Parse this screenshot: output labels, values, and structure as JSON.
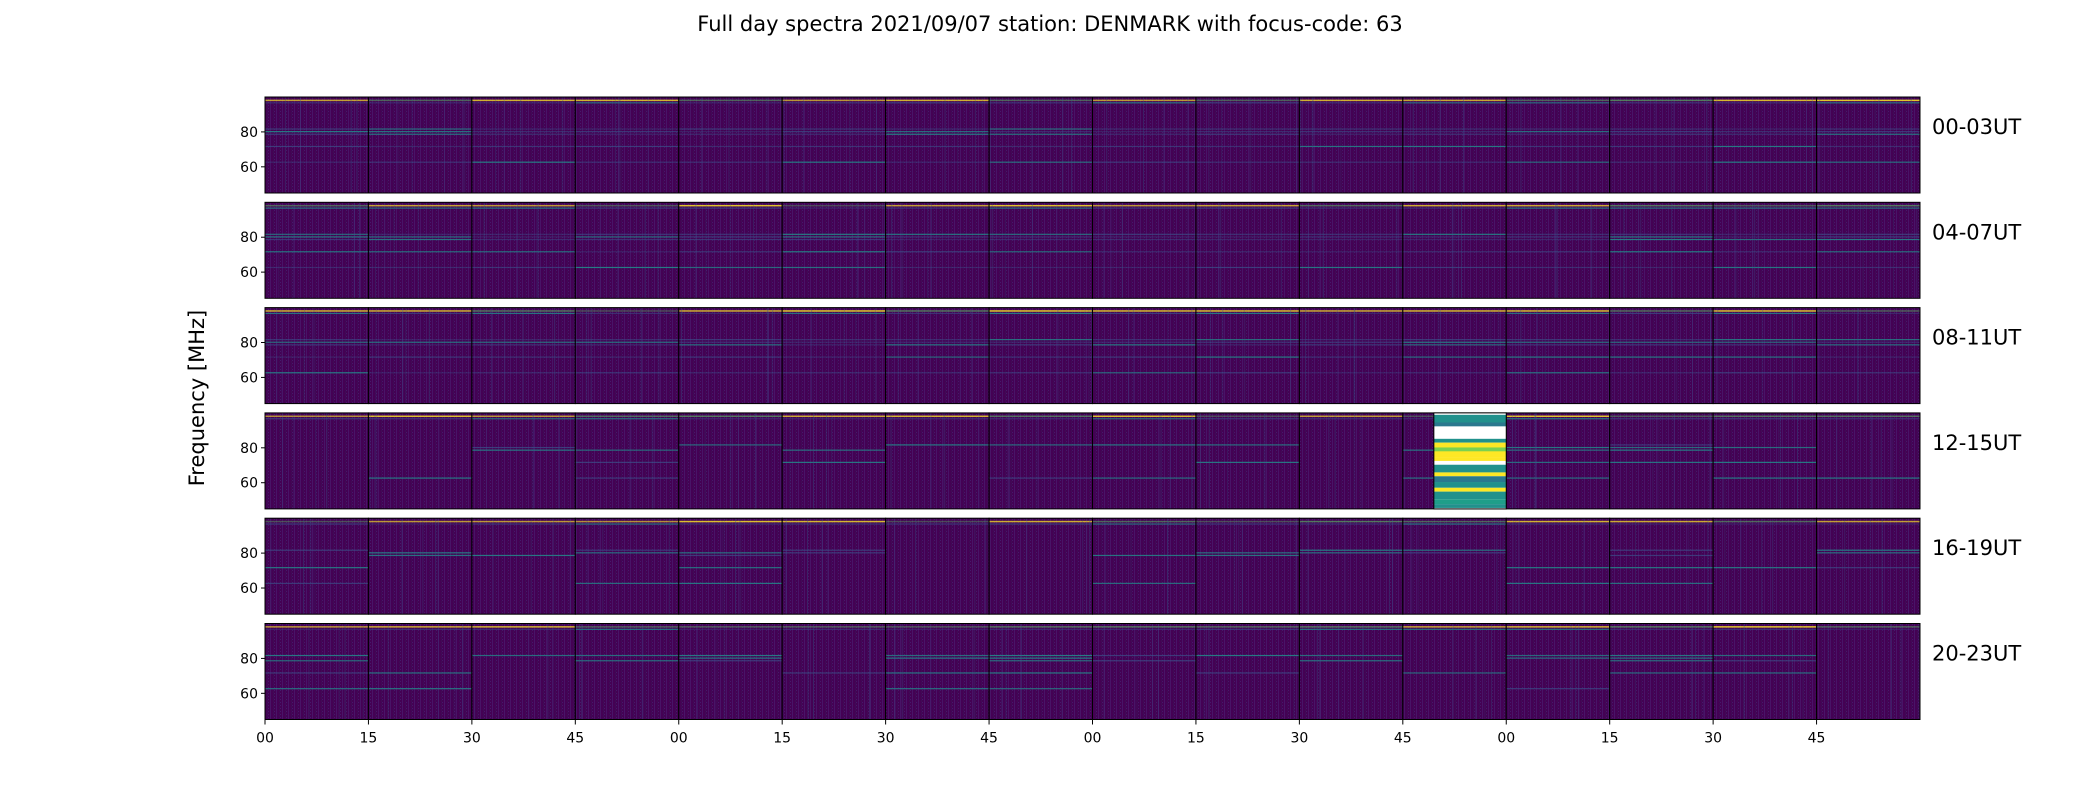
{
  "chart_data": {
    "type": "heatmap",
    "title": "Full day spectra 2021/09/07 station: DENMARK with focus-code: 63",
    "ylabel": "Frequency [MHz]",
    "xlabel": "",
    "y_ticks": [
      "80",
      "60"
    ],
    "y_tick_values": [
      80,
      60
    ],
    "ylim": [
      45,
      100
    ],
    "x_ticks": [
      "00",
      "15",
      "30",
      "45",
      "00",
      "15",
      "30",
      "45",
      "00",
      "15",
      "30",
      "45",
      "00",
      "15",
      "30",
      "45"
    ],
    "colormap": "viridis",
    "rows": [
      {
        "label": "00-03UT"
      },
      {
        "label": "04-07UT"
      },
      {
        "label": "08-11UT"
      },
      {
        "label": "12-15UT"
      },
      {
        "label": "16-19UT"
      },
      {
        "label": "20-23UT"
      }
    ],
    "panels_per_row": 16,
    "panel_minutes": 15,
    "burst": {
      "row": 3,
      "panel": 11,
      "start_fraction": 0.3
    }
  },
  "colors": {
    "background": "#440154",
    "dark": "#46085c",
    "mid": "#3b528b",
    "teal": "#21918c",
    "green": "#5ec962",
    "yellow": "#fde725"
  }
}
